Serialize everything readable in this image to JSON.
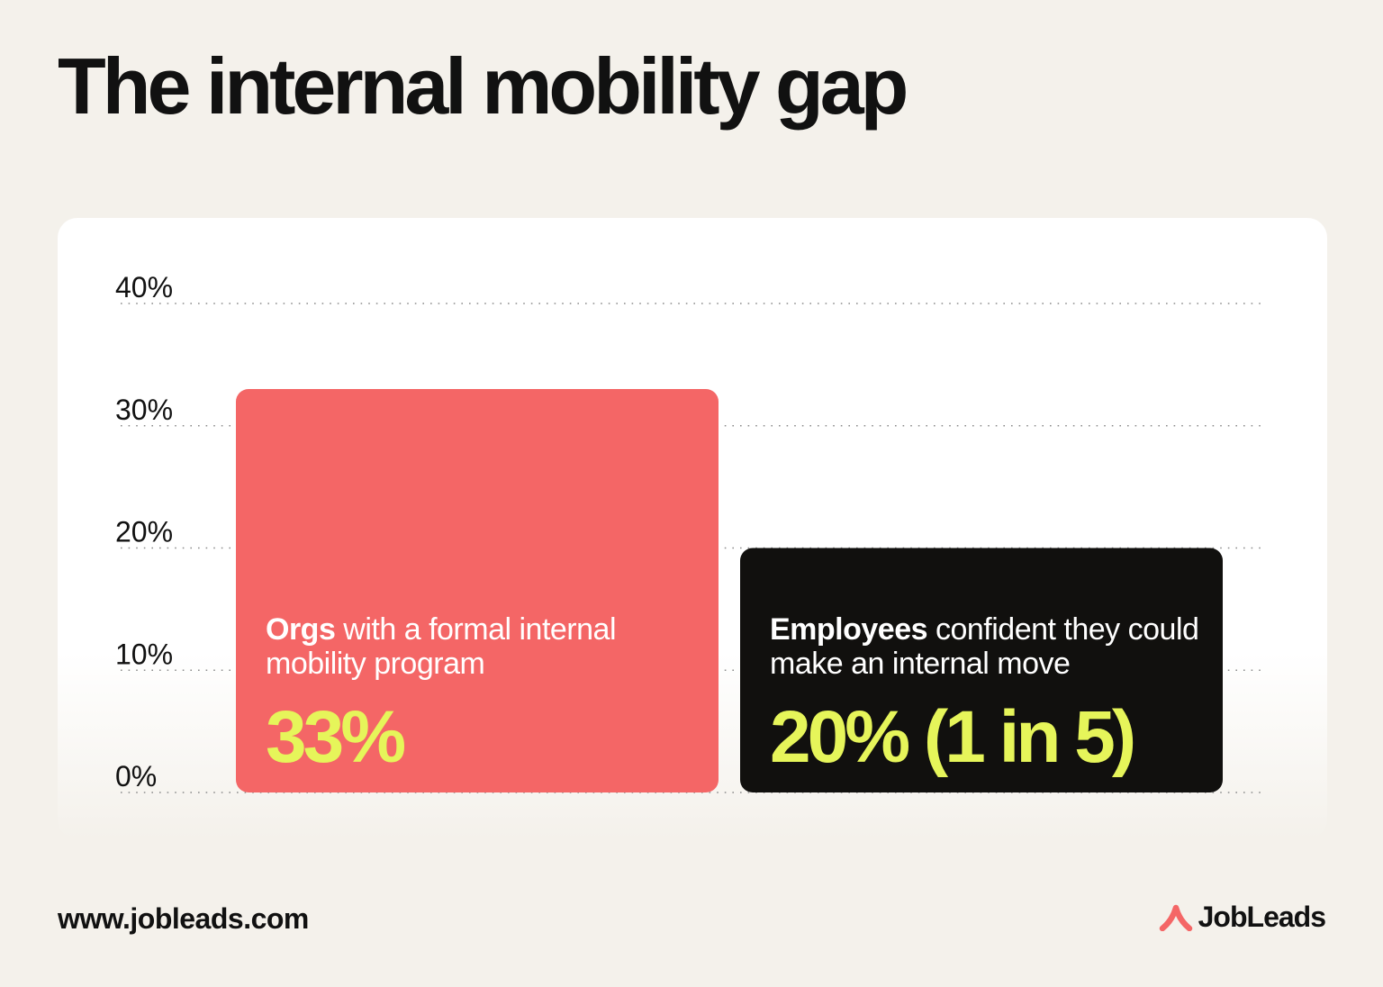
{
  "title": "The internal mobility gap",
  "footer": {
    "url": "www.jobleads.com",
    "brand": "JobLeads"
  },
  "colors": {
    "background": "#f4f1eb",
    "bar_orgs": "#f46666",
    "bar_employees": "#11100e",
    "value_text": "#e6f55a",
    "brand_accent": "#f46666"
  },
  "chart_data": {
    "type": "bar",
    "ylim": [
      0,
      40
    ],
    "yticks": [
      "0%",
      "10%",
      "20%",
      "30%",
      "40%"
    ],
    "ytick_values": [
      0,
      10,
      20,
      30,
      40
    ],
    "grid": true,
    "categories": [
      {
        "label_bold": "Orgs",
        "label_rest": " with a formal internal mobility program",
        "value_label": "33%"
      },
      {
        "label_bold": "Employees",
        "label_rest": " confident they could make an internal move",
        "value_label": "20% (1 in 5)"
      }
    ],
    "values": [
      33,
      20
    ]
  }
}
